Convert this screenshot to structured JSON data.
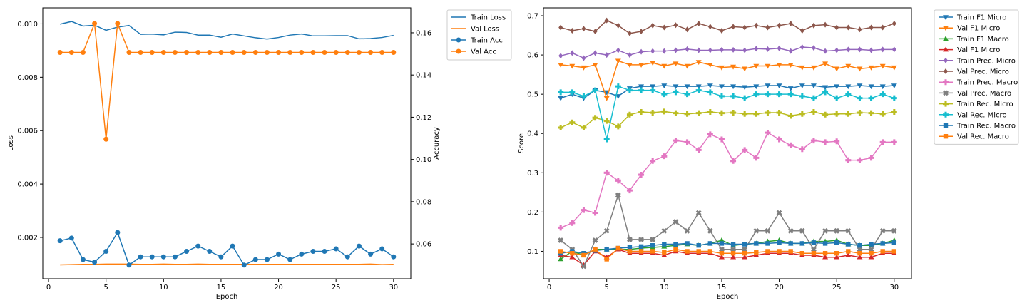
{
  "chart_data": [
    {
      "type": "line",
      "xlabel": "Epoch",
      "ylabel_left": "Loss",
      "ylabel_right": "Accuracy",
      "xlim": [
        -0.5,
        31.5
      ],
      "ylim_left": [
        0.00045,
        0.0106
      ],
      "ylim_right": [
        0.0435,
        0.1718
      ],
      "x_ticks": [
        0,
        5,
        10,
        15,
        20,
        25,
        30
      ],
      "y_ticks_left": [
        0.002,
        0.004,
        0.006,
        0.008,
        0.01
      ],
      "y_ticks_left_labels": [
        "0.002",
        "0.004",
        "0.006",
        "0.008",
        "0.010"
      ],
      "y_ticks_right": [
        0.06,
        0.08,
        0.1,
        0.12,
        0.14,
        0.16
      ],
      "y_ticks_right_labels": [
        "0.06",
        "0.08",
        "0.10",
        "0.12",
        "0.14",
        "0.16"
      ],
      "legend_position": "outside-right",
      "x": [
        1,
        2,
        3,
        4,
        5,
        6,
        7,
        8,
        9,
        10,
        11,
        12,
        13,
        14,
        15,
        16,
        17,
        18,
        19,
        20,
        21,
        22,
        23,
        24,
        25,
        26,
        27,
        28,
        29,
        30
      ],
      "series": [
        {
          "name": "Train Loss",
          "axis": "left",
          "color": "#1f77b4",
          "marker": "none",
          "values": [
            0.00999,
            0.01009,
            0.00992,
            0.00995,
            0.00976,
            0.00988,
            0.00994,
            0.00961,
            0.00962,
            0.00959,
            0.00969,
            0.00968,
            0.00958,
            0.00958,
            0.0095,
            0.00962,
            0.00955,
            0.00948,
            0.00943,
            0.00949,
            0.00958,
            0.00962,
            0.00955,
            0.00955,
            0.00956,
            0.00956,
            0.00944,
            0.00945,
            0.00949,
            0.00957
          ]
        },
        {
          "name": "Val Loss",
          "axis": "left",
          "color": "#ff7f0e",
          "marker": "none",
          "values": [
            0.00097,
            0.00098,
            0.00099,
            0.00099,
            0.001,
            0.001,
            0.001,
            0.00099,
            0.00099,
            0.001,
            0.00099,
            0.00099,
            0.001,
            0.00099,
            0.00099,
            0.00099,
            0.00099,
            0.00099,
            0.00099,
            0.00099,
            0.00099,
            0.00099,
            0.00099,
            0.00099,
            0.00099,
            0.00099,
            0.00099,
            0.001,
            0.00098,
            0.00099
          ]
        },
        {
          "name": "Train Acc",
          "axis": "right",
          "color": "#1f77b4",
          "marker": "circle",
          "values": [
            0.0615,
            0.0628,
            0.0526,
            0.0514,
            0.0565,
            0.0654,
            0.05,
            0.0539,
            0.0539,
            0.0539,
            0.0539,
            0.0565,
            0.059,
            0.0565,
            0.0539,
            0.059,
            0.05,
            0.0526,
            0.0526,
            0.0552,
            0.0526,
            0.0552,
            0.0565,
            0.0565,
            0.0577,
            0.0539,
            0.059,
            0.0552,
            0.0577,
            0.0539
          ]
        },
        {
          "name": "Val Acc",
          "axis": "right",
          "color": "#ff7f0e",
          "marker": "circle",
          "values": [
            0.1507,
            0.1507,
            0.1507,
            0.1644,
            0.1096,
            0.1644,
            0.1507,
            0.1507,
            0.1507,
            0.1507,
            0.1507,
            0.1507,
            0.1507,
            0.1507,
            0.1507,
            0.1507,
            0.1507,
            0.1507,
            0.1507,
            0.1507,
            0.1507,
            0.1507,
            0.1507,
            0.1507,
            0.1507,
            0.1507,
            0.1507,
            0.1507,
            0.1507,
            0.1507
          ]
        }
      ]
    },
    {
      "type": "line",
      "xlabel": "Epoch",
      "ylabel": "Score",
      "xlim": [
        -0.5,
        31.5
      ],
      "ylim": [
        0.03,
        0.72
      ],
      "x_ticks": [
        0,
        5,
        10,
        15,
        20,
        25,
        30
      ],
      "y_ticks": [
        0.1,
        0.2,
        0.3,
        0.4,
        0.5,
        0.6,
        0.7
      ],
      "y_ticks_labels": [
        "0.1",
        "0.2",
        "0.3",
        "0.4",
        "0.5",
        "0.6",
        "0.7"
      ],
      "legend_position": "outside-right",
      "x": [
        1,
        2,
        3,
        4,
        5,
        6,
        7,
        8,
        9,
        10,
        11,
        12,
        13,
        14,
        15,
        16,
        17,
        18,
        19,
        20,
        21,
        22,
        23,
        24,
        25,
        26,
        27,
        28,
        29,
        30
      ],
      "series": [
        {
          "name": "Train F1 Micro",
          "color": "#1f77b4",
          "marker": "triangle_down",
          "values": [
            0.49,
            0.5,
            0.49,
            0.51,
            0.505,
            0.495,
            0.515,
            0.52,
            0.52,
            0.522,
            0.52,
            0.52,
            0.52,
            0.522,
            0.52,
            0.52,
            0.518,
            0.52,
            0.522,
            0.522,
            0.515,
            0.522,
            0.522,
            0.518,
            0.52,
            0.52,
            0.522,
            0.52,
            0.52,
            0.522
          ]
        },
        {
          "name": "Val F1 Micro",
          "color": "#ff7f0e",
          "marker": "triangle_down",
          "values": [
            0.575,
            0.572,
            0.568,
            0.575,
            0.49,
            0.585,
            0.575,
            0.575,
            0.58,
            0.572,
            0.578,
            0.572,
            0.582,
            0.575,
            0.568,
            0.57,
            0.565,
            0.572,
            0.572,
            0.575,
            0.575,
            0.568,
            0.568,
            0.578,
            0.565,
            0.572,
            0.565,
            0.568,
            0.572,
            0.568
          ]
        },
        {
          "name": "Train F1 Macro",
          "color": "#2ca02c",
          "marker": "triangle_up",
          "values": [
            0.08,
            0.1,
            0.09,
            0.105,
            0.105,
            0.105,
            0.105,
            0.108,
            0.11,
            0.112,
            0.115,
            0.118,
            0.115,
            0.12,
            0.128,
            0.115,
            0.118,
            0.12,
            0.125,
            0.128,
            0.12,
            0.12,
            0.125,
            0.125,
            0.128,
            0.118,
            0.115,
            0.115,
            0.12,
            0.128
          ]
        },
        {
          "name": "Val F1 Micro",
          "color": "#d62728",
          "marker": "triangle_up",
          "values": [
            0.09,
            0.085,
            0.065,
            0.1,
            0.085,
            0.105,
            0.095,
            0.095,
            0.095,
            0.09,
            0.1,
            0.095,
            0.095,
            0.095,
            0.085,
            0.085,
            0.085,
            0.09,
            0.095,
            0.095,
            0.095,
            0.09,
            0.09,
            0.085,
            0.085,
            0.09,
            0.085,
            0.085,
            0.095,
            0.095
          ]
        },
        {
          "name": "Train Prec. Micro",
          "color": "#9467bd",
          "marker": "diamond",
          "values": [
            0.598,
            0.605,
            0.592,
            0.605,
            0.6,
            0.612,
            0.6,
            0.608,
            0.61,
            0.61,
            0.612,
            0.615,
            0.612,
            0.612,
            0.613,
            0.613,
            0.612,
            0.616,
            0.615,
            0.617,
            0.61,
            0.62,
            0.618,
            0.61,
            0.612,
            0.614,
            0.614,
            0.612,
            0.614,
            0.614
          ]
        },
        {
          "name": "Val Prec. Micro",
          "color": "#8c564b",
          "marker": "diamond",
          "values": [
            0.67,
            0.662,
            0.667,
            0.66,
            0.688,
            0.675,
            0.655,
            0.66,
            0.675,
            0.67,
            0.676,
            0.665,
            0.68,
            0.672,
            0.662,
            0.672,
            0.67,
            0.675,
            0.67,
            0.675,
            0.68,
            0.662,
            0.675,
            0.677,
            0.67,
            0.67,
            0.665,
            0.67,
            0.67,
            0.68
          ]
        },
        {
          "name": "Train Prec. Macro",
          "color": "#e377c2",
          "marker": "plus_filled",
          "values": [
            0.16,
            0.172,
            0.205,
            0.198,
            0.3,
            0.28,
            0.255,
            0.295,
            0.33,
            0.342,
            0.382,
            0.378,
            0.358,
            0.398,
            0.385,
            0.33,
            0.358,
            0.338,
            0.402,
            0.385,
            0.37,
            0.36,
            0.382,
            0.378,
            0.38,
            0.332,
            0.332,
            0.338,
            0.378,
            0.378
          ]
        },
        {
          "name": "Val Prec. Macro",
          "color": "#7f7f7f",
          "marker": "x_filled",
          "values": [
            0.128,
            0.105,
            0.062,
            0.128,
            0.152,
            0.243,
            0.13,
            0.13,
            0.13,
            0.152,
            0.175,
            0.152,
            0.198,
            0.152,
            0.105,
            0.105,
            0.105,
            0.152,
            0.152,
            0.198,
            0.152,
            0.152,
            0.105,
            0.152,
            0.152,
            0.152,
            0.105,
            0.105,
            0.152,
            0.152
          ]
        },
        {
          "name": "Train Rec. Micro",
          "color": "#bcbd22",
          "marker": "plus_filled",
          "values": [
            0.415,
            0.428,
            0.415,
            0.44,
            0.432,
            0.418,
            0.448,
            0.455,
            0.453,
            0.456,
            0.452,
            0.45,
            0.452,
            0.455,
            0.452,
            0.453,
            0.45,
            0.45,
            0.453,
            0.453,
            0.445,
            0.45,
            0.455,
            0.448,
            0.45,
            0.45,
            0.453,
            0.452,
            0.45,
            0.455
          ]
        },
        {
          "name": "Val Rec. Micro",
          "color": "#17becf",
          "marker": "plus_filled",
          "values": [
            0.505,
            0.505,
            0.495,
            0.51,
            0.385,
            0.52,
            0.51,
            0.51,
            0.51,
            0.5,
            0.505,
            0.5,
            0.51,
            0.505,
            0.495,
            0.495,
            0.49,
            0.5,
            0.5,
            0.5,
            0.5,
            0.495,
            0.49,
            0.505,
            0.49,
            0.5,
            0.49,
            0.49,
            0.5,
            0.49
          ]
        },
        {
          "name": "Train Rec. Macro",
          "color": "#1f77b4",
          "marker": "square",
          "values": [
            0.095,
            0.1,
            0.095,
            0.102,
            0.105,
            0.108,
            0.11,
            0.112,
            0.115,
            0.118,
            0.118,
            0.12,
            0.115,
            0.12,
            0.12,
            0.118,
            0.118,
            0.12,
            0.12,
            0.122,
            0.12,
            0.12,
            0.122,
            0.12,
            0.122,
            0.118,
            0.115,
            0.118,
            0.12,
            0.122
          ]
        },
        {
          "name": "Val Rec. Macro",
          "color": "#ff7f0e",
          "marker": "square",
          "values": [
            0.1,
            0.095,
            0.09,
            0.105,
            0.08,
            0.108,
            0.1,
            0.1,
            0.1,
            0.097,
            0.105,
            0.1,
            0.1,
            0.1,
            0.095,
            0.095,
            0.095,
            0.097,
            0.1,
            0.1,
            0.1,
            0.095,
            0.095,
            0.095,
            0.095,
            0.1,
            0.095,
            0.095,
            0.1,
            0.1
          ]
        }
      ]
    }
  ]
}
